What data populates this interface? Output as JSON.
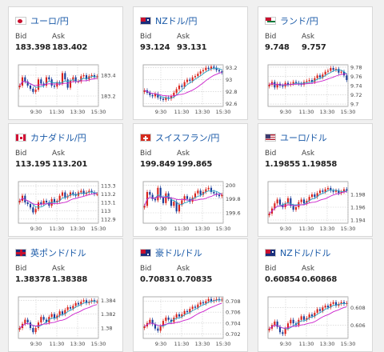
{
  "bid_label": "Bid",
  "ask_label": "Ask",
  "x_ticks": [
    "9:30",
    "11:30",
    "13:30",
    "15:30"
  ],
  "colors": {
    "up": "#d9241c",
    "down": "#1a3d99",
    "ma1": "#2aa3c4",
    "ma2": "#cc22cc",
    "title": "#1a5aa8"
  },
  "cards": [
    {
      "pair": "ユーロ/円",
      "flag": "eu-flag-icon",
      "bid": "183.398",
      "ask": "183.402",
      "y_ticks": [
        "183.4",
        "183.2"
      ],
      "ylim": [
        183.1,
        183.5
      ],
      "chart_data": {
        "type": "candlestick",
        "closes": [
          183.3,
          183.38,
          183.34,
          183.3,
          183.27,
          183.24,
          183.26,
          183.36,
          183.32,
          183.3,
          183.38,
          183.36,
          183.3,
          183.29,
          183.33,
          183.32,
          183.42,
          183.36,
          183.28,
          183.35,
          183.38,
          183.34,
          183.34,
          183.39,
          183.4,
          183.36,
          183.39,
          183.4,
          183.38,
          183.39
        ]
      }
    },
    {
      "pair": "NZドル/円",
      "flag": "nz-flag-icon",
      "bid": "93.124",
      "ask": "93.131",
      "y_ticks": [
        "93.2",
        "93",
        "92.8",
        "92.6"
      ],
      "ylim": [
        92.55,
        93.25
      ],
      "chart_data": {
        "type": "candlestick",
        "closes": [
          92.82,
          92.78,
          92.74,
          92.72,
          92.76,
          92.7,
          92.68,
          92.66,
          92.7,
          92.68,
          92.72,
          92.78,
          92.84,
          92.9,
          92.88,
          92.96,
          93.0,
          92.98,
          93.04,
          93.06,
          93.1,
          93.14,
          93.16,
          93.2,
          93.18,
          93.22,
          93.2,
          93.16,
          93.14,
          93.12
        ]
      }
    },
    {
      "pair": "ランド/円",
      "flag": "za-flag-icon",
      "bid": "9.748",
      "ask": "9.757",
      "y_ticks": [
        "9.78",
        "9.76",
        "9.74",
        "9.72",
        "9.7"
      ],
      "ylim": [
        9.695,
        9.785
      ],
      "chart_data": {
        "type": "candlestick",
        "closes": [
          9.742,
          9.748,
          9.736,
          9.744,
          9.74,
          9.738,
          9.746,
          9.742,
          9.744,
          9.748,
          9.746,
          9.744,
          9.742,
          9.748,
          9.75,
          9.752,
          9.748,
          9.756,
          9.762,
          9.758,
          9.764,
          9.77,
          9.772,
          9.778,
          9.774,
          9.776,
          9.768,
          9.77,
          9.762,
          9.752
        ]
      }
    },
    {
      "pair": "カナダドル/円",
      "flag": "ca-flag-icon",
      "bid": "113.195",
      "ask": "113.201",
      "y_ticks": [
        "113.3",
        "113.2",
        "113.1",
        "113",
        "112.9"
      ],
      "ylim": [
        112.85,
        113.35
      ],
      "chart_data": {
        "type": "candlestick",
        "closes": [
          113.12,
          113.18,
          113.1,
          113.08,
          113.04,
          112.98,
          113.02,
          113.1,
          113.08,
          113.12,
          113.1,
          113.06,
          113.14,
          113.1,
          113.12,
          113.18,
          113.22,
          113.16,
          113.18,
          113.22,
          113.2,
          113.18,
          113.22,
          113.24,
          113.2,
          113.22,
          113.24,
          113.22,
          113.2,
          113.2
        ]
      }
    },
    {
      "pair": "スイスフラン/円",
      "flag": "ch-flag-icon",
      "bid": "199.849",
      "ask": "199.865",
      "y_ticks": [
        "200",
        "199.8",
        "199.6"
      ],
      "ylim": [
        199.45,
        200.05
      ],
      "chart_data": {
        "type": "candlestick",
        "closes": [
          199.7,
          199.9,
          199.86,
          199.8,
          199.78,
          199.96,
          199.82,
          199.74,
          199.88,
          199.8,
          199.7,
          199.76,
          199.62,
          199.72,
          199.78,
          199.84,
          199.8,
          199.76,
          199.82,
          199.88,
          199.92,
          199.86,
          199.9,
          199.94,
          199.96,
          199.9,
          199.88,
          199.86,
          199.84,
          199.86
        ]
      }
    },
    {
      "pair": "ユーロ/ドル",
      "flag": "us-flag-icon",
      "bid": "1.19855",
      "ask": "1.19858",
      "y_ticks": [
        "1.198",
        "1.196",
        "1.194"
      ],
      "ylim": [
        1.1935,
        1.2
      ],
      "chart_data": {
        "type": "candlestick",
        "closes": [
          1.195,
          1.1958,
          1.1966,
          1.1972,
          1.1964,
          1.196,
          1.1966,
          1.1974,
          1.1962,
          1.1956,
          1.196,
          1.1968,
          1.1972,
          1.1966,
          1.197,
          1.1976,
          1.198,
          1.1976,
          1.1982,
          1.1986,
          1.1984,
          1.1988,
          1.199,
          1.1986,
          1.1984,
          1.1986,
          1.1982,
          1.1984,
          1.1988,
          1.1986
        ]
      }
    },
    {
      "pair": "英ポンド/ドル",
      "flag": "uk-flag-icon",
      "bid": "1.38378",
      "ask": "1.38388",
      "y_ticks": [
        "1.384",
        "1.382",
        "1.38"
      ],
      "ylim": [
        1.3785,
        1.3845
      ],
      "chart_data": {
        "type": "candlestick",
        "closes": [
          1.38,
          1.3806,
          1.3812,
          1.3808,
          1.38,
          1.3794,
          1.38,
          1.3808,
          1.3816,
          1.3812,
          1.3808,
          1.3816,
          1.382,
          1.3814,
          1.3818,
          1.3824,
          1.382,
          1.3826,
          1.383,
          1.3828,
          1.3832,
          1.3836,
          1.3834,
          1.3838,
          1.384,
          1.3836,
          1.3838,
          1.384,
          1.3838,
          1.3838
        ]
      }
    },
    {
      "pair": "豪ドル/ドル",
      "flag": "au-flag-icon",
      "bid": "0.70831",
      "ask": "0.70835",
      "y_ticks": [
        "0.708",
        "0.706",
        "0.704",
        "0.702"
      ],
      "ylim": [
        0.7012,
        0.7088
      ],
      "chart_data": {
        "type": "candlestick",
        "closes": [
          0.7034,
          0.704,
          0.7046,
          0.7038,
          0.703,
          0.7026,
          0.7034,
          0.7044,
          0.705,
          0.7046,
          0.7042,
          0.705,
          0.7056,
          0.7052,
          0.7056,
          0.7062,
          0.706,
          0.7066,
          0.707,
          0.7068,
          0.7074,
          0.7078,
          0.7076,
          0.708,
          0.7084,
          0.708,
          0.7082,
          0.7084,
          0.7082,
          0.7083
        ]
      }
    },
    {
      "pair": "NZドル/ドル",
      "flag": "nz-flag-icon",
      "bid": "0.60854",
      "ask": "0.60868",
      "y_ticks": [
        "0.608",
        "0.606"
      ],
      "ylim": [
        0.6045,
        0.6092
      ],
      "chart_data": {
        "type": "candlestick",
        "closes": [
          0.6056,
          0.606,
          0.6064,
          0.6058,
          0.6052,
          0.605,
          0.6056,
          0.6062,
          0.6066,
          0.6062,
          0.606,
          0.6066,
          0.607,
          0.6066,
          0.6068,
          0.6072,
          0.607,
          0.6074,
          0.6078,
          0.6076,
          0.608,
          0.6082,
          0.608,
          0.6084,
          0.6086,
          0.6082,
          0.6084,
          0.6086,
          0.6084,
          0.6085
        ]
      }
    }
  ]
}
